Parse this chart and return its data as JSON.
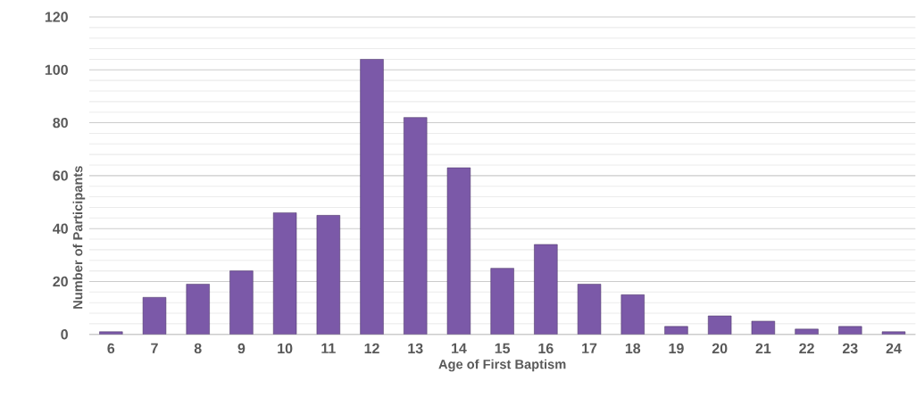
{
  "chart_data": {
    "type": "bar",
    "xlabel": "Age of First Baptism",
    "ylabel": "Number of Participants",
    "categories": [
      "6",
      "7",
      "8",
      "9",
      "10",
      "11",
      "12",
      "13",
      "14",
      "15",
      "16",
      "17",
      "18",
      "19",
      "20",
      "21",
      "22",
      "23",
      "24"
    ],
    "values": [
      1,
      14,
      19,
      24,
      46,
      45,
      104,
      82,
      63,
      25,
      34,
      19,
      15,
      3,
      7,
      5,
      2,
      3,
      1
    ],
    "color": "#7b59a8",
    "ylim": [
      0,
      120
    ],
    "yticks": [
      0,
      20,
      40,
      60,
      80,
      100,
      120
    ],
    "grid": "y"
  }
}
